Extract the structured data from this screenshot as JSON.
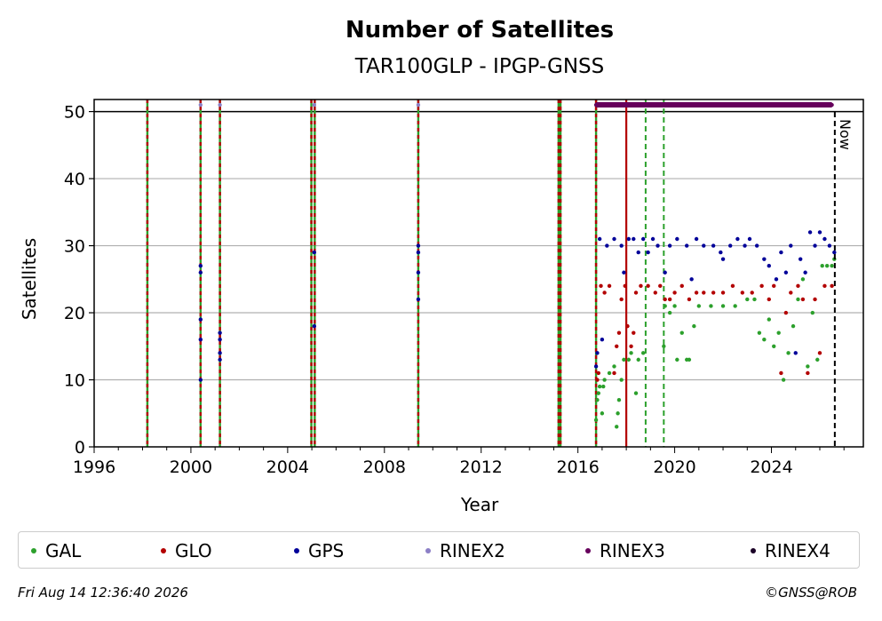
{
  "chart_data": {
    "type": "scatter",
    "title": "Number of Satellites",
    "subtitle": "TAR100GLP - IPGP-GNSS",
    "xlabel": "Year",
    "ylabel": "Satellites",
    "xlim": [
      1996,
      2027.8
    ],
    "ylim": [
      0,
      51.8
    ],
    "x_ticks": [
      1996,
      2000,
      2004,
      2008,
      2012,
      2016,
      2020,
      2024
    ],
    "y_ticks": [
      0,
      10,
      20,
      30,
      40,
      50
    ],
    "grid": "horizontal",
    "legend_position": "bottom",
    "now_label": "Now",
    "now_x": 2026.62,
    "reference_line_y": 50,
    "colors": {
      "GAL": "#2ca02c",
      "GLO": "#b30000",
      "GPS": "#000099",
      "RINEX2": "#8c7fc6",
      "RINEX3": "#66005c",
      "RINEX4": "#1a0026",
      "now": "#000000",
      "grid": "#b0b0b0"
    },
    "vertical_events": [
      {
        "x": 1998.2,
        "style": "green-red-dashed"
      },
      {
        "x": 2000.4,
        "style": "green-red-dashed"
      },
      {
        "x": 2001.2,
        "style": "green-red-dashed"
      },
      {
        "x": 2004.98,
        "style": "green-red-dashed"
      },
      {
        "x": 2005.12,
        "style": "green-red-dashed"
      },
      {
        "x": 2009.4,
        "style": "green-red-dashed"
      },
      {
        "x": 2015.2,
        "style": "green-red-dashed"
      },
      {
        "x": 2015.28,
        "style": "green-red-dashed"
      },
      {
        "x": 2016.75,
        "style": "green-red-dashed"
      },
      {
        "x": 2018.0,
        "style": "red-solid"
      },
      {
        "x": 2018.8,
        "style": "green-dashed"
      },
      {
        "x": 2019.55,
        "style": "green-dashed"
      }
    ],
    "series": [
      {
        "name": "GAL",
        "points": [
          [
            2016.75,
            4
          ],
          [
            2016.8,
            7
          ],
          [
            2016.85,
            8
          ],
          [
            2016.9,
            9
          ],
          [
            2017.0,
            5
          ],
          [
            2017.05,
            9
          ],
          [
            2017.1,
            10
          ],
          [
            2017.3,
            11
          ],
          [
            2017.5,
            12
          ],
          [
            2017.6,
            3
          ],
          [
            2017.65,
            5
          ],
          [
            2017.7,
            7
          ],
          [
            2017.8,
            10
          ],
          [
            2017.9,
            13
          ],
          [
            2018.1,
            13
          ],
          [
            2018.2,
            14
          ],
          [
            2018.4,
            8
          ],
          [
            2018.5,
            13
          ],
          [
            2018.7,
            14
          ],
          [
            2019.55,
            15
          ],
          [
            2019.6,
            21
          ],
          [
            2019.8,
            20
          ],
          [
            2020.0,
            21
          ],
          [
            2020.1,
            13
          ],
          [
            2020.3,
            17
          ],
          [
            2020.5,
            13
          ],
          [
            2020.6,
            13
          ],
          [
            2020.8,
            18
          ],
          [
            2021.0,
            21
          ],
          [
            2021.5,
            21
          ],
          [
            2022.0,
            21
          ],
          [
            2022.5,
            21
          ],
          [
            2023.0,
            22
          ],
          [
            2023.3,
            22
          ],
          [
            2023.5,
            17
          ],
          [
            2023.7,
            16
          ],
          [
            2023.9,
            19
          ],
          [
            2024.1,
            15
          ],
          [
            2024.3,
            17
          ],
          [
            2024.5,
            10
          ],
          [
            2024.7,
            14
          ],
          [
            2024.9,
            18
          ],
          [
            2025.1,
            22
          ],
          [
            2025.3,
            25
          ],
          [
            2025.5,
            12
          ],
          [
            2025.7,
            20
          ],
          [
            2025.9,
            13
          ],
          [
            2026.1,
            27
          ],
          [
            2026.3,
            27
          ],
          [
            2026.5,
            27
          ],
          [
            2026.6,
            28
          ]
        ]
      },
      {
        "name": "GLO",
        "points": [
          [
            2016.8,
            10
          ],
          [
            2016.85,
            11
          ],
          [
            2016.95,
            24
          ],
          [
            2017.1,
            23
          ],
          [
            2017.3,
            24
          ],
          [
            2017.5,
            11
          ],
          [
            2017.6,
            15
          ],
          [
            2017.7,
            17
          ],
          [
            2017.8,
            22
          ],
          [
            2017.95,
            24
          ],
          [
            2018.05,
            18
          ],
          [
            2018.2,
            15
          ],
          [
            2018.3,
            17
          ],
          [
            2018.4,
            23
          ],
          [
            2018.6,
            24
          ],
          [
            2018.9,
            24
          ],
          [
            2019.2,
            23
          ],
          [
            2019.4,
            24
          ],
          [
            2019.6,
            22
          ],
          [
            2019.8,
            22
          ],
          [
            2020.0,
            23
          ],
          [
            2020.3,
            24
          ],
          [
            2020.6,
            22
          ],
          [
            2020.9,
            23
          ],
          [
            2021.2,
            23
          ],
          [
            2021.6,
            23
          ],
          [
            2022.0,
            23
          ],
          [
            2022.4,
            24
          ],
          [
            2022.8,
            23
          ],
          [
            2023.2,
            23
          ],
          [
            2023.6,
            24
          ],
          [
            2023.9,
            22
          ],
          [
            2024.1,
            24
          ],
          [
            2024.4,
            11
          ],
          [
            2024.6,
            20
          ],
          [
            2024.8,
            23
          ],
          [
            2025.1,
            24
          ],
          [
            2025.3,
            22
          ],
          [
            2025.5,
            11
          ],
          [
            2025.8,
            22
          ],
          [
            2026.0,
            14
          ],
          [
            2026.2,
            24
          ],
          [
            2026.5,
            24
          ]
        ]
      },
      {
        "name": "GPS",
        "points": [
          [
            2000.4,
            10
          ],
          [
            2000.4,
            16
          ],
          [
            2000.4,
            19
          ],
          [
            2000.4,
            26
          ],
          [
            2000.4,
            27
          ],
          [
            2001.2,
            13
          ],
          [
            2001.2,
            14
          ],
          [
            2001.2,
            16
          ],
          [
            2001.2,
            17
          ],
          [
            2005.1,
            18
          ],
          [
            2005.1,
            29
          ],
          [
            2009.4,
            22
          ],
          [
            2009.4,
            26
          ],
          [
            2009.4,
            29
          ],
          [
            2009.4,
            30
          ],
          [
            2016.75,
            12
          ],
          [
            2016.8,
            14
          ],
          [
            2016.9,
            31
          ],
          [
            2017.0,
            16
          ],
          [
            2017.2,
            30
          ],
          [
            2017.5,
            31
          ],
          [
            2017.8,
            30
          ],
          [
            2017.9,
            26
          ],
          [
            2018.1,
            31
          ],
          [
            2018.3,
            31
          ],
          [
            2018.5,
            29
          ],
          [
            2018.7,
            31
          ],
          [
            2018.9,
            29
          ],
          [
            2019.1,
            31
          ],
          [
            2019.3,
            30
          ],
          [
            2019.6,
            26
          ],
          [
            2019.8,
            30
          ],
          [
            2020.1,
            31
          ],
          [
            2020.5,
            30
          ],
          [
            2020.7,
            25
          ],
          [
            2020.9,
            31
          ],
          [
            2021.2,
            30
          ],
          [
            2021.6,
            30
          ],
          [
            2021.9,
            29
          ],
          [
            2022.0,
            28
          ],
          [
            2022.3,
            30
          ],
          [
            2022.6,
            31
          ],
          [
            2022.9,
            30
          ],
          [
            2023.1,
            31
          ],
          [
            2023.4,
            30
          ],
          [
            2023.7,
            28
          ],
          [
            2023.9,
            27
          ],
          [
            2024.2,
            25
          ],
          [
            2024.4,
            29
          ],
          [
            2024.6,
            26
          ],
          [
            2024.8,
            30
          ],
          [
            2025.0,
            14
          ],
          [
            2025.2,
            28
          ],
          [
            2025.4,
            26
          ],
          [
            2025.6,
            32
          ],
          [
            2025.8,
            30
          ],
          [
            2026.0,
            32
          ],
          [
            2026.2,
            31
          ],
          [
            2026.4,
            30
          ],
          [
            2026.6,
            29
          ]
        ]
      },
      {
        "name": "RINEX2",
        "points": [
          [
            2000.4,
            51
          ],
          [
            2001.2,
            51
          ],
          [
            2005.1,
            51
          ],
          [
            2009.4,
            51
          ]
        ]
      },
      {
        "name": "RINEX3",
        "points": [
          [
            2016.75,
            51
          ],
          [
            2017.0,
            51
          ],
          [
            2017.5,
            51
          ],
          [
            2018.0,
            51
          ],
          [
            2018.5,
            51
          ],
          [
            2019.0,
            51
          ],
          [
            2019.5,
            51
          ],
          [
            2020.0,
            51
          ],
          [
            2020.5,
            51
          ],
          [
            2021.0,
            51
          ],
          [
            2021.5,
            51
          ],
          [
            2022.0,
            51
          ],
          [
            2022.5,
            51
          ],
          [
            2023.0,
            51
          ],
          [
            2023.5,
            51
          ],
          [
            2024.0,
            51
          ],
          [
            2024.5,
            51
          ],
          [
            2025.0,
            51
          ],
          [
            2025.5,
            51
          ],
          [
            2026.0,
            51
          ],
          [
            2026.5,
            51
          ]
        ]
      },
      {
        "name": "RINEX4",
        "points": []
      }
    ]
  },
  "legend": [
    {
      "label": "GAL"
    },
    {
      "label": "GLO"
    },
    {
      "label": "GPS"
    },
    {
      "label": "RINEX2"
    },
    {
      "label": "RINEX3"
    },
    {
      "label": "RINEX4"
    }
  ],
  "footer": {
    "date": "Fri Aug 14 12:36:40 2026",
    "credit": "©GNSS@ROB"
  }
}
